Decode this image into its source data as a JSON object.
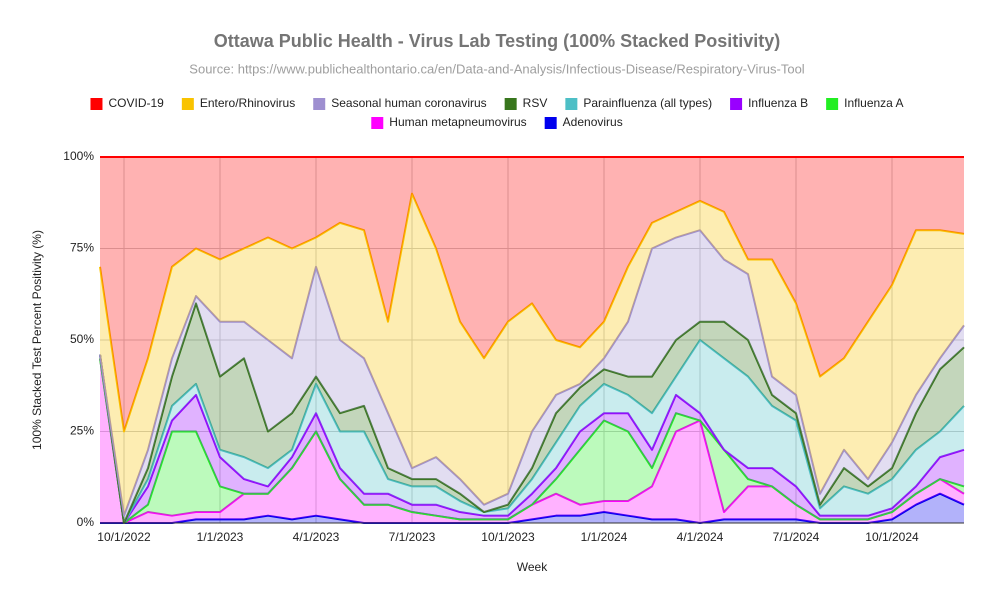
{
  "chart_data": {
    "type": "stacked_area_100",
    "title": "Ottawa Public Health - Virus Lab Testing (100% Stacked Positivity)",
    "subtitle": "Source: https://www.publichealthontario.ca/en/Data-and-Analysis/Infectious-Disease/Respiratory-Virus-Tool",
    "xlabel": "Week",
    "ylabel": "100% Stacked Test Percent Positivity (%)",
    "categories": [
      null,
      "10/1/2022",
      null,
      null,
      null,
      "1/1/2023",
      null,
      null,
      null,
      "4/1/2023",
      null,
      null,
      null,
      "7/1/2023",
      null,
      null,
      null,
      "10/1/2023",
      null,
      null,
      null,
      "1/1/2024",
      null,
      null,
      null,
      "4/1/2024",
      null,
      null,
      null,
      "7/1/2024",
      null,
      null,
      null,
      "10/1/2024",
      null,
      null,
      null
    ],
    "ylim": [
      0,
      100
    ],
    "yticks": [
      {
        "value": 0,
        "label": "0%"
      },
      {
        "value": 25,
        "label": "25%"
      },
      {
        "value": 50,
        "label": "50%"
      },
      {
        "value": 75,
        "label": "75%"
      },
      {
        "value": 100,
        "label": "100%"
      }
    ],
    "grid": true,
    "legend": "top",
    "series": [
      {
        "name": "COVID-19",
        "color": "#ff0000",
        "values": [
          30,
          75,
          55,
          30,
          25,
          28,
          25,
          22,
          25,
          22,
          18,
          20,
          45,
          10,
          25,
          45,
          55,
          45,
          40,
          50,
          52,
          45,
          30,
          18,
          15,
          12,
          15,
          28,
          28,
          40,
          60,
          55,
          45,
          35,
          20,
          20,
          21
        ]
      },
      {
        "name": "Entero/Rhinovirus",
        "color": "#f9c300",
        "values": [
          24,
          23,
          25,
          25,
          13,
          17,
          20,
          28,
          30,
          8,
          32,
          35,
          25,
          75,
          57,
          43,
          40,
          47,
          35,
          15,
          10,
          10,
          15,
          7,
          7,
          8,
          13,
          4,
          32,
          25,
          32,
          25,
          43,
          43,
          45,
          35,
          25
        ]
      },
      {
        "name": "Seasonal human coronavirus",
        "color": "#9e8fd0",
        "values": [
          0,
          2,
          5,
          5,
          2,
          15,
          10,
          25,
          15,
          30,
          20,
          13,
          15,
          3,
          6,
          4,
          2,
          3,
          10,
          5,
          1,
          3,
          15,
          35,
          28,
          25,
          17,
          18,
          5,
          5,
          3,
          5,
          2,
          7,
          5,
          3,
          6
        ]
      },
      {
        "name": "RSV",
        "color": "#38761d",
        "values": [
          0,
          0,
          3,
          8,
          22,
          20,
          27,
          10,
          10,
          2,
          5,
          7,
          3,
          2,
          2,
          2,
          0,
          1,
          3,
          8,
          5,
          4,
          5,
          10,
          10,
          5,
          10,
          10,
          3,
          2,
          1,
          5,
          2,
          3,
          10,
          17,
          16
        ]
      },
      {
        "name": "Parainfluenza (all types)",
        "color": "#4dbfc6",
        "values": [
          0,
          0,
          2,
          4,
          3,
          2,
          6,
          5,
          2,
          8,
          10,
          17,
          4,
          5,
          5,
          3,
          1,
          2,
          4,
          7,
          7,
          8,
          5,
          10,
          5,
          20,
          25,
          25,
          17,
          18,
          2,
          8,
          6,
          8,
          10,
          7,
          12
        ]
      },
      {
        "name": "Influenza B",
        "color": "#9900ff",
        "values": [
          1,
          0,
          5,
          3,
          10,
          8,
          4,
          2,
          3,
          5,
          3,
          3,
          3,
          2,
          3,
          2,
          1,
          1,
          3,
          3,
          5,
          2,
          5,
          5,
          5,
          2,
          0,
          3,
          5,
          5,
          1,
          1,
          1,
          1,
          2,
          6,
          10
        ]
      },
      {
        "name": "Influenza A",
        "color": "#22ee22",
        "values": [
          0,
          0,
          2,
          23,
          22,
          7,
          0,
          0,
          0,
          0,
          0,
          0,
          0,
          0,
          0,
          0,
          0,
          0,
          0,
          4,
          15,
          22,
          19,
          5,
          5,
          0,
          17,
          2,
          0,
          0,
          0,
          0,
          0,
          0,
          0,
          0,
          2
        ]
      },
      {
        "name": "Human metapneumovirus",
        "color": "#ff00ff",
        "values": [
          45,
          0,
          3,
          2,
          2,
          2,
          7,
          6,
          14,
          23,
          11,
          5,
          5,
          3,
          2,
          1,
          1,
          1,
          4,
          6,
          3,
          3,
          4,
          9,
          24,
          28,
          2,
          9,
          9,
          4,
          1,
          1,
          1,
          2,
          3,
          4,
          3
        ]
      },
      {
        "name": "Adenovirus",
        "color": "#0000ee",
        "values": [
          0,
          0,
          0,
          0,
          1,
          1,
          1,
          2,
          1,
          2,
          1,
          0,
          0,
          0,
          0,
          0,
          0,
          0,
          1,
          2,
          2,
          3,
          2,
          1,
          1,
          0,
          1,
          1,
          1,
          1,
          0,
          0,
          0,
          1,
          5,
          8,
          5
        ]
      }
    ]
  }
}
